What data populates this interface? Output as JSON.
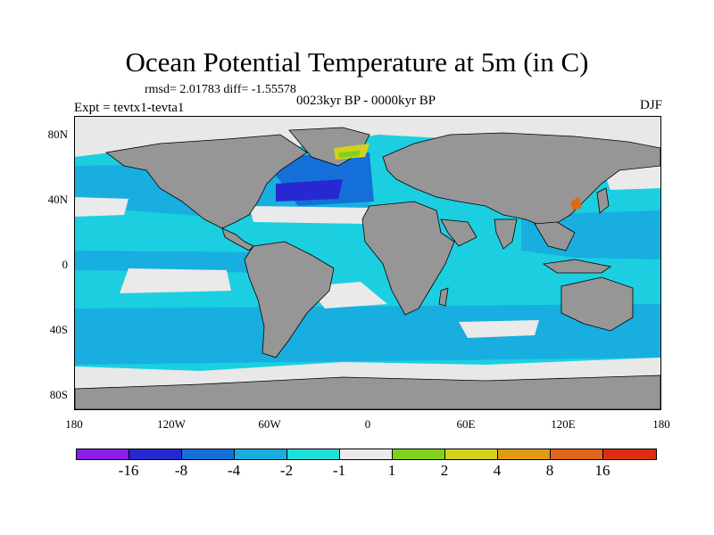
{
  "title": "Ocean Potential Temperature at 5m (in C)",
  "stats": "rmsd= 2.01783 diff= -1.55578",
  "subtitle": "0023kyr BP - 0000kyr BP",
  "experiment": "Expt = tevtx1-tevta1",
  "season": "DJF",
  "lat_labels": [
    "80N",
    "40N",
    "0",
    "40S",
    "80S"
  ],
  "lon_labels": [
    "180",
    "120W",
    "60W",
    "0",
    "60E",
    "120E",
    "180"
  ],
  "colorbar": {
    "levels": [
      "-16",
      "-8",
      "-4",
      "-2",
      "-1",
      "1",
      "2",
      "4",
      "8",
      "16"
    ],
    "colors": [
      "#8a1ee6",
      "#2828d2",
      "#1470d8",
      "#18aee0",
      "#1ee0d8",
      "#eaeaea",
      "#7ed21a",
      "#d2d21e",
      "#e09a14",
      "#e0661a",
      "#dc2e10"
    ]
  },
  "colors": {
    "land": "#969696",
    "ocean": "#1ccfe0",
    "ice": "#e8e8e8"
  }
}
